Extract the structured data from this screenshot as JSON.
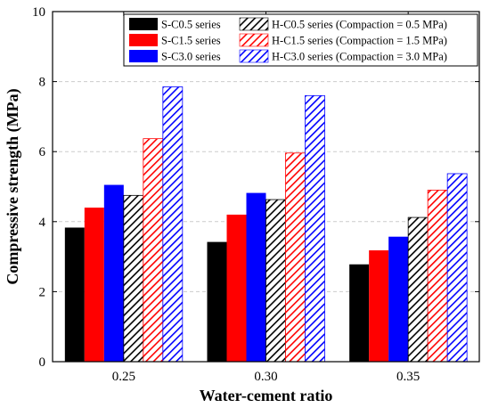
{
  "chart_data": {
    "type": "bar",
    "xlabel": "Water-cement ratio",
    "ylabel": "Compressive strength (MPa)",
    "ylim": [
      0,
      10
    ],
    "yticks": [
      "0",
      "2",
      "4",
      "6",
      "8",
      "10"
    ],
    "categories": [
      "0.25",
      "0.30",
      "0.35"
    ],
    "grid": true,
    "legend_position": "top-right",
    "series": [
      {
        "name": "S-C0.5 series",
        "color": "#000000",
        "pattern": "solid",
        "values": [
          3.83,
          3.42,
          2.78
        ]
      },
      {
        "name": "S-C1.5 series",
        "color": "#ff0000",
        "pattern": "solid",
        "values": [
          4.4,
          4.2,
          3.18
        ]
      },
      {
        "name": "S-C3.0 series",
        "color": "#0000ff",
        "pattern": "solid",
        "values": [
          5.05,
          4.82,
          3.57
        ]
      },
      {
        "name": "H-C0.5 series (Compaction = 0.5 MPa)",
        "color": "#000000",
        "pattern": "hatch",
        "values": [
          4.75,
          4.63,
          4.12
        ]
      },
      {
        "name": "H-C1.5 series (Compaction = 1.5 MPa)",
        "color": "#ff0000",
        "pattern": "hatch",
        "values": [
          6.37,
          5.96,
          4.9
        ]
      },
      {
        "name": "H-C3.0 series (Compaction = 3.0 MPa)",
        "color": "#0000ff",
        "pattern": "hatch",
        "values": [
          7.85,
          7.6,
          5.37
        ]
      }
    ]
  }
}
